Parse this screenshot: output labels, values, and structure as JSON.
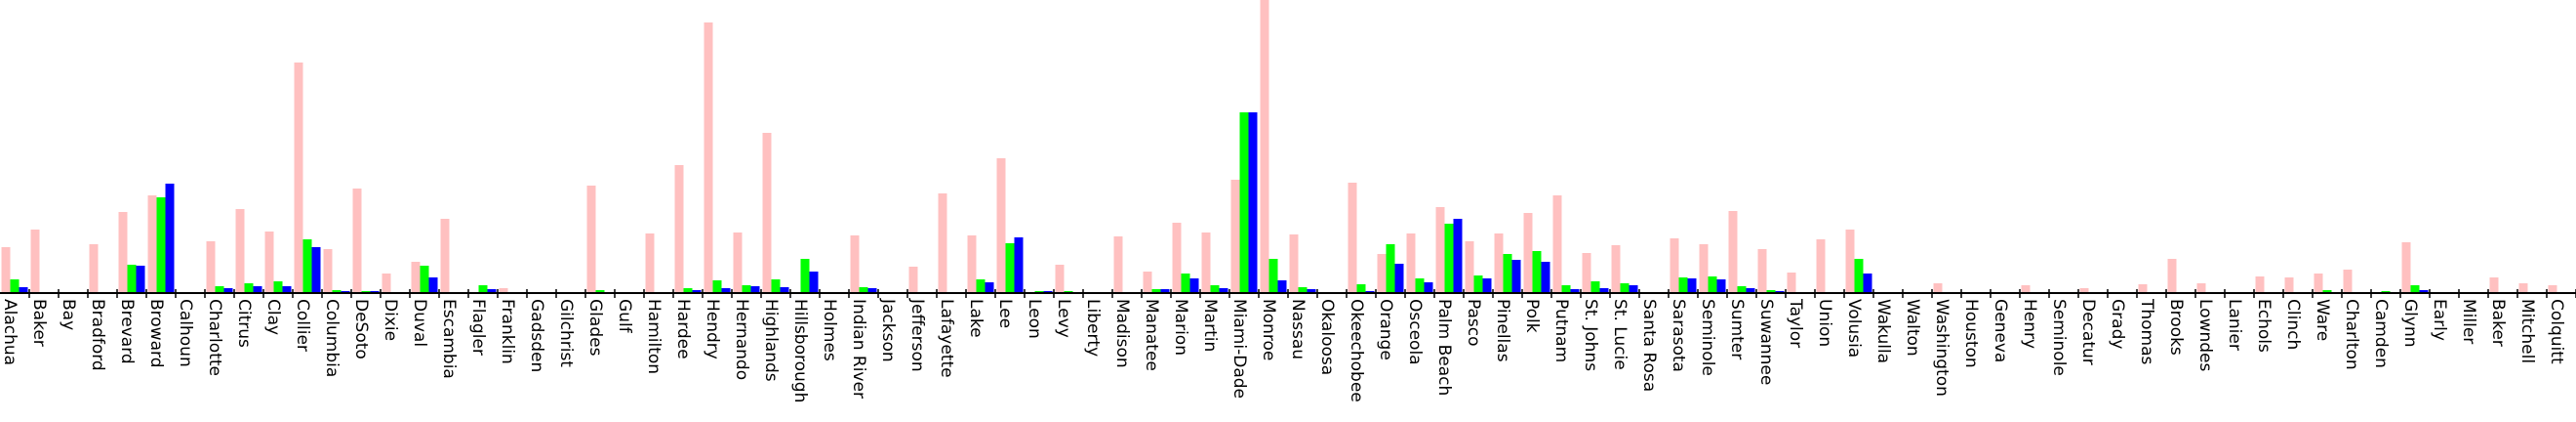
{
  "chart_data": {
    "type": "bar",
    "title": "",
    "xlabel": "",
    "ylabel": "",
    "ylim": [
      0,
      300
    ],
    "grid": false,
    "legend": "none",
    "categories": [
      "Alachua",
      "Baker",
      "Bay",
      "Bradford",
      "Brevard",
      "Broward",
      "Calhoun",
      "Charlotte",
      "Citrus",
      "Clay",
      "Collier",
      "Columbia",
      "DeSoto",
      "Dixie",
      "Duval",
      "Escambia",
      "Flagler",
      "Franklin",
      "Gadsden",
      "Gilchrist",
      "Glades",
      "Gulf",
      "Hamilton",
      "Hardee",
      "Hendry",
      "Hernando",
      "Highlands",
      "Hillsborough",
      "Holmes",
      "Indian River",
      "Jackson",
      "Jefferson",
      "Lafayette",
      "Lake",
      "Lee",
      "Leon",
      "Levy",
      "Liberty",
      "Madison",
      "Manatee",
      "Marion",
      "Martin",
      "Miami-Dade",
      "Monroe",
      "Nassau",
      "Okaloosa",
      "Okeechobee",
      "Orange",
      "Osceola",
      "Palm Beach",
      "Pasco",
      "Pinellas",
      "Polk",
      "Putnam",
      "St. Johns",
      "St. Lucie",
      "Santa Rosa",
      "Sarasota",
      "Seminole",
      "Sumter",
      "Suwannee",
      "Taylor",
      "Union",
      "Volusia",
      "Wakulla",
      "Walton",
      "Washington",
      "Houston",
      "Geneva",
      "Henry",
      "Seminole",
      "Decatur",
      "Grady",
      "Thomas",
      "Brooks",
      "Lowndes",
      "Lanier",
      "Echols",
      "Clinch",
      "Ware",
      "Charlton",
      "Camden",
      "Glynn",
      "Early",
      "Miller",
      "Baker",
      "Mitchell",
      "Colquitt"
    ],
    "series": [
      {
        "color": "#ffc0c0",
        "values": [
          47,
          65,
          0,
          50,
          83,
          100,
          0,
          53,
          86,
          63,
          236,
          45,
          107,
          20,
          32,
          76,
          0,
          5,
          0,
          0,
          110,
          0,
          61,
          131,
          277,
          62,
          164,
          0,
          0,
          59,
          0,
          27,
          102,
          59,
          138,
          0,
          29,
          0,
          58,
          22,
          72,
          62,
          116,
          305,
          60,
          0,
          113,
          40,
          61,
          88,
          53,
          61,
          82,
          100,
          41,
          49,
          0,
          56,
          50,
          84,
          45,
          21,
          55,
          65,
          0,
          0,
          10,
          0,
          0,
          8,
          0,
          5,
          0,
          9,
          35,
          10,
          0,
          17,
          16,
          20,
          24,
          0,
          52,
          0,
          0,
          16,
          10,
          8
        ]
      },
      {
        "color": "#00ff00",
        "values": [
          14,
          0,
          0,
          0,
          29,
          98,
          0,
          7,
          10,
          12,
          55,
          3,
          2,
          0,
          28,
          0,
          8,
          0,
          0,
          0,
          3,
          0,
          0,
          5,
          13,
          8,
          14,
          35,
          0,
          6,
          0,
          0,
          0,
          14,
          51,
          2,
          2,
          0,
          0,
          4,
          20,
          8,
          185,
          35,
          6,
          0,
          9,
          50,
          15,
          71,
          18,
          40,
          43,
          8,
          12,
          10,
          0,
          16,
          17,
          7,
          3,
          0,
          0,
          35,
          0,
          0,
          0,
          0,
          0,
          0,
          0,
          0,
          0,
          0,
          0,
          0,
          0,
          0,
          0,
          3,
          0,
          2,
          8,
          0,
          0,
          0,
          0,
          0
        ]
      },
      {
        "color": "#0000ff",
        "values": [
          6,
          0,
          0,
          0,
          28,
          112,
          0,
          5,
          7,
          7,
          47,
          2,
          2,
          0,
          16,
          0,
          4,
          0,
          0,
          0,
          0,
          0,
          0,
          3,
          5,
          7,
          6,
          22,
          0,
          5,
          0,
          0,
          0,
          11,
          57,
          2,
          0,
          0,
          0,
          4,
          15,
          5,
          185,
          13,
          4,
          0,
          2,
          30,
          11,
          76,
          15,
          34,
          32,
          4,
          5,
          8,
          0,
          15,
          14,
          5,
          2,
          0,
          0,
          20,
          0,
          0,
          0,
          0,
          0,
          0,
          0,
          0,
          0,
          0,
          0,
          0,
          0,
          0,
          0,
          0,
          0,
          0,
          3,
          0,
          0,
          0,
          0,
          0
        ]
      }
    ]
  }
}
